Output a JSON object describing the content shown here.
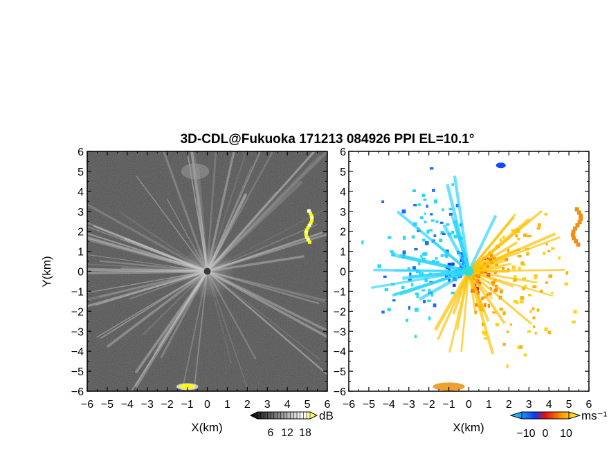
{
  "figure": {
    "title": "3D-CDL@Fukuoka 171213 084926 PPI EL=10.1°"
  },
  "chart_data": [
    {
      "type": "heatmap",
      "panel": "left",
      "quantity": "reflectivity",
      "xlabel": "X(km)",
      "ylabel": "Y(km)",
      "xlim": [
        -6,
        6
      ],
      "ylim": [
        -6,
        6
      ],
      "x_ticks": [
        "−6",
        "−5",
        "−4",
        "−3",
        "−2",
        "−1",
        "0",
        "1",
        "2",
        "3",
        "4",
        "5",
        "6"
      ],
      "y_ticks": [
        "6",
        "5",
        "4",
        "3",
        "2",
        "1",
        "0",
        "−1",
        "−2",
        "−3",
        "−4",
        "−5",
        "−6"
      ],
      "colorbar": {
        "unit": "dB",
        "ticks": [
          "6",
          "12",
          "18"
        ],
        "range": [
          0,
          24
        ],
        "colors": [
          "#000000",
          "#ffffff",
          "#ffff00"
        ]
      },
      "features": [
        {
          "label": "radial streaks from origin",
          "color": "#d8d8d8"
        },
        {
          "label": "strong echo east",
          "x": 5.0,
          "y": 2.2,
          "color": "#ffff00"
        },
        {
          "label": "strong echo south",
          "x": -1.0,
          "y": -5.7,
          "color": "#ffff00"
        },
        {
          "label": "faint plume north",
          "x": -0.6,
          "y": 5.0,
          "color": "#9a9a9a"
        }
      ]
    },
    {
      "type": "heatmap",
      "panel": "right",
      "quantity": "radial velocity",
      "xlabel": "X(km)",
      "xlim": [
        -6,
        6
      ],
      "ylim": [
        -6,
        6
      ],
      "x_ticks": [
        "−6",
        "−5",
        "−4",
        "−3",
        "−2",
        "−1",
        "0",
        "1",
        "2",
        "3",
        "4",
        "5",
        "6"
      ],
      "colorbar": {
        "unit": "ms⁻¹",
        "ticks": [
          "−10",
          "0",
          "10"
        ],
        "range": [
          -15,
          15
        ],
        "colors": [
          "#29e0ff",
          "#0a3cf0",
          "#e81010",
          "#ffa000",
          "#ffff30"
        ]
      },
      "features": [
        {
          "label": "approaching NW sector",
          "color": "#29d6ff"
        },
        {
          "label": "receding SE sector",
          "color": "#ffb400"
        },
        {
          "label": "echo east",
          "x": 5.3,
          "y": 2.1,
          "color": "#f09010"
        },
        {
          "label": "echo south",
          "x": -1.0,
          "y": -5.7,
          "color": "#f0a030"
        },
        {
          "label": "echo north",
          "x": 1.6,
          "y": 5.3,
          "color": "#1248ff"
        }
      ]
    }
  ]
}
